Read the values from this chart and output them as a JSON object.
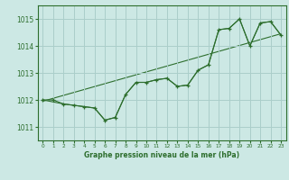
{
  "title": "Graphe pression niveau de la mer (hPa)",
  "bg_color": "#cce8e4",
  "grid_color": "#aaceca",
  "line_color": "#2d6e2d",
  "xlim": [
    -0.5,
    23.5
  ],
  "ylim": [
    1010.5,
    1015.5
  ],
  "yticks": [
    1011,
    1012,
    1013,
    1014,
    1015
  ],
  "xticks": [
    0,
    1,
    2,
    3,
    4,
    5,
    6,
    7,
    8,
    9,
    10,
    11,
    12,
    13,
    14,
    15,
    16,
    17,
    18,
    19,
    20,
    21,
    22,
    23
  ],
  "series_main_x": [
    0,
    1,
    2,
    3,
    4,
    5,
    6,
    7,
    8,
    9,
    10,
    11,
    12,
    13,
    14,
    15,
    16,
    17,
    18,
    19,
    20,
    21,
    22,
    23
  ],
  "series_main_y": [
    1012.0,
    1012.0,
    1011.85,
    1011.8,
    1011.75,
    1011.7,
    1011.25,
    1011.35,
    1012.2,
    1012.65,
    1012.65,
    1012.75,
    1012.8,
    1012.5,
    1012.55,
    1013.1,
    1013.3,
    1014.6,
    1014.65,
    1015.0,
    1014.0,
    1014.85,
    1014.9,
    1014.4
  ],
  "series_back_x": [
    0,
    2,
    3,
    4,
    5,
    6,
    7,
    8,
    9,
    10,
    11,
    12,
    13,
    14,
    15,
    16,
    17,
    18,
    19,
    20,
    21,
    22,
    23
  ],
  "series_back_y": [
    1012.0,
    1011.85,
    1011.8,
    1011.75,
    1011.7,
    1011.25,
    1011.35,
    1012.2,
    1012.65,
    1012.65,
    1012.75,
    1012.8,
    1012.5,
    1012.55,
    1013.1,
    1013.3,
    1014.6,
    1014.65,
    1015.0,
    1014.0,
    1014.85,
    1014.9,
    1014.4
  ],
  "trend_x": [
    0,
    23
  ],
  "trend_y": [
    1011.95,
    1014.45
  ]
}
